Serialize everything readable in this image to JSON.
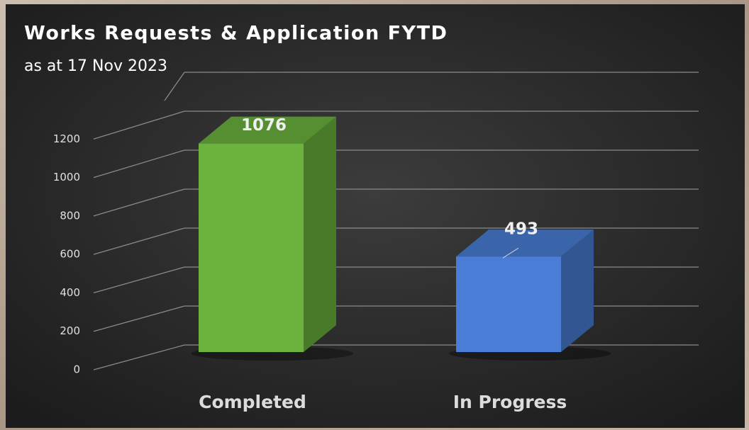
{
  "chart_data": {
    "type": "bar3d",
    "title": "Works Requests & Application FYTD",
    "subtitle": "as at 17 Nov 2023",
    "categories": [
      "Completed",
      "In Progress"
    ],
    "values": [
      1076,
      493
    ],
    "colors": [
      "#6cb33e",
      "#4a7ed6"
    ],
    "ylim": [
      0,
      1400
    ],
    "yticks": [
      0,
      200,
      400,
      600,
      800,
      1000,
      1200
    ],
    "grid": true
  }
}
